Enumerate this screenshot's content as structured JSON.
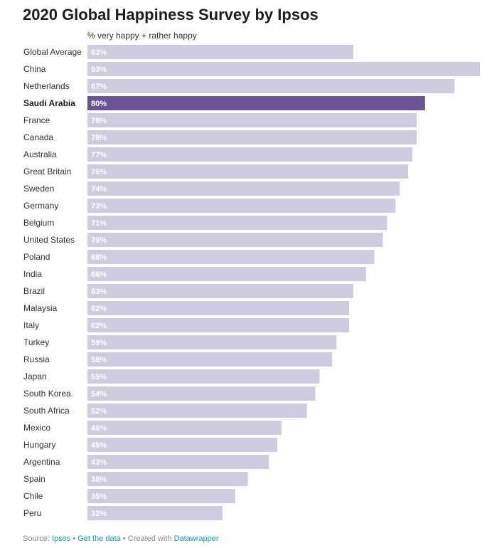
{
  "chart_data": {
    "type": "bar",
    "orientation": "horizontal",
    "title": "2020 Global Happiness Survey by Ipsos",
    "column_header": "% very happy + rather happy",
    "value_suffix": "%",
    "highlight": "Saudi Arabia",
    "colors": {
      "bar": "#d0cce0",
      "highlight": "#6a5594",
      "label_text": "#ffffff"
    },
    "xlim": [
      0,
      93
    ],
    "categories": [
      "Global Average",
      "China",
      "Netherlands",
      "Saudi Arabia",
      "France",
      "Canada",
      "Australia",
      "Great Britain",
      "Sweden",
      "Germany",
      "Belgium",
      "United States",
      "Poland",
      "India",
      "Brazil",
      "Malaysia",
      "Italy",
      "Turkey",
      "Russia",
      "Japan",
      "South Korea",
      "South Africa",
      "Mexico",
      "Hungary",
      "Argentina",
      "Spain",
      "Chile",
      "Peru"
    ],
    "values": [
      63,
      93,
      87,
      80,
      78,
      78,
      77,
      76,
      74,
      73,
      71,
      70,
      68,
      66,
      63,
      62,
      62,
      59,
      58,
      55,
      54,
      52,
      46,
      45,
      43,
      38,
      35,
      32
    ]
  },
  "footer": {
    "source_label": "Source: ",
    "source_link": "Ipsos",
    "sep1": " • ",
    "data_link": "Get the data",
    "sep2": " • Created with ",
    "tool_link": "Datawrapper"
  }
}
